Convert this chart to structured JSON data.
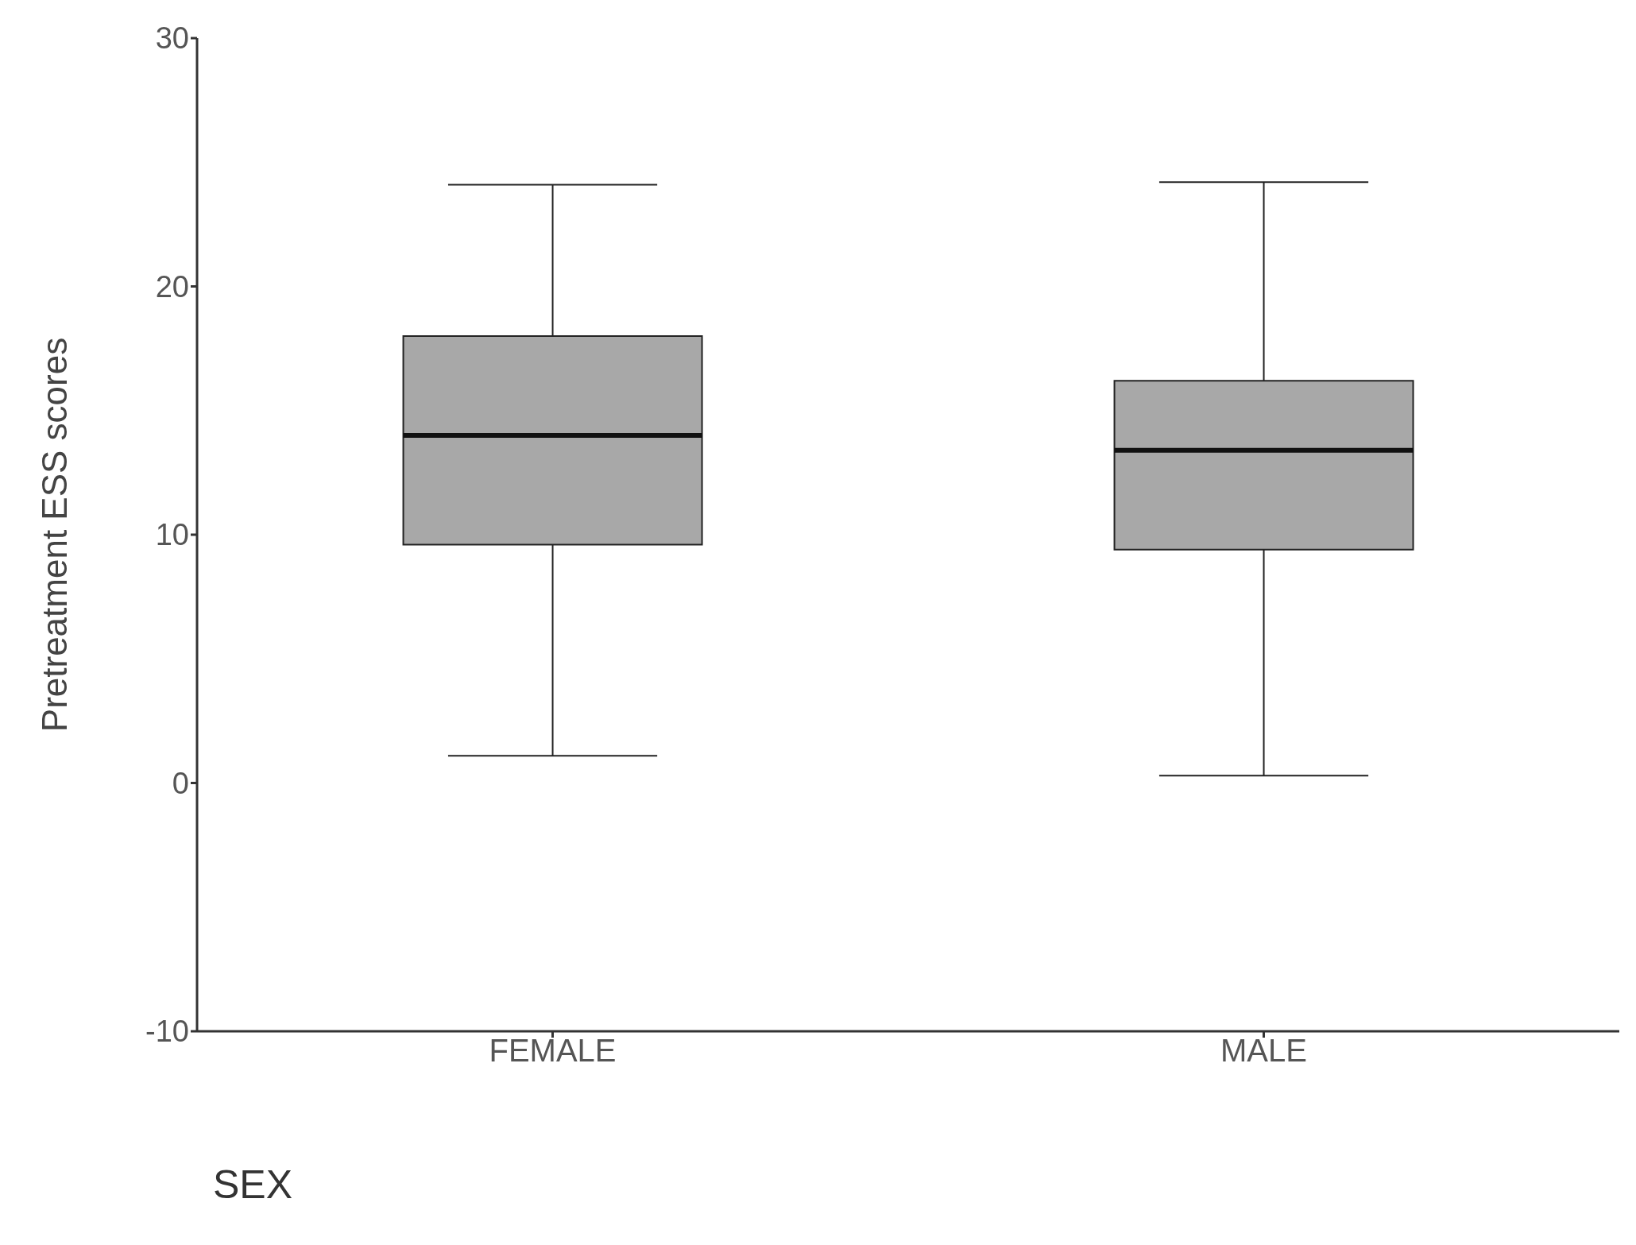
{
  "chart_data": {
    "type": "box",
    "xlabel": "SEX",
    "ylabel": "Pretreatment ESS scores",
    "categories": [
      "FEMALE",
      "MALE"
    ],
    "boxes": [
      {
        "low": 1.1,
        "q1": 9.6,
        "median": 14.0,
        "q3": 18.0,
        "high": 24.1
      },
      {
        "low": 0.3,
        "q1": 9.4,
        "median": 13.4,
        "q3": 16.2,
        "high": 24.2
      }
    ],
    "color": "#a8a8a8",
    "ylim": [
      -10,
      30
    ],
    "yticks": [
      -10,
      0,
      10,
      20,
      30
    ],
    "grid": false,
    "legend": false
  }
}
